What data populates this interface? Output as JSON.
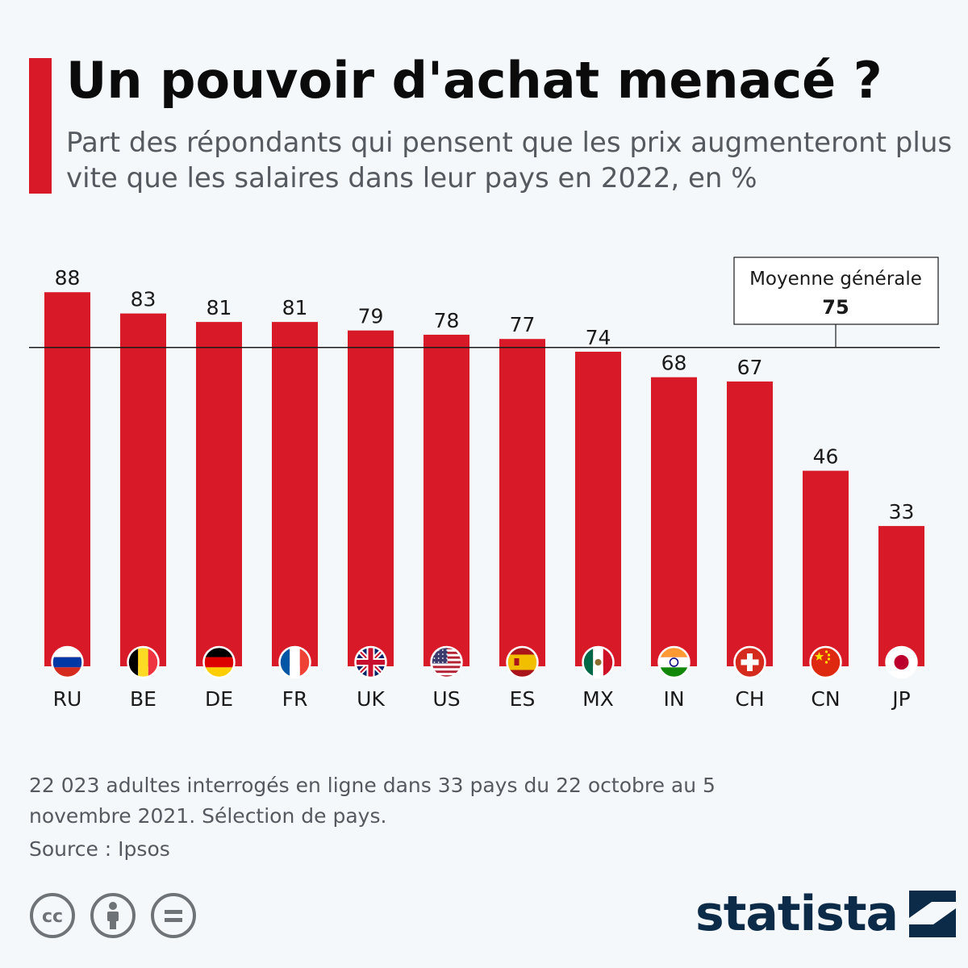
{
  "header": {
    "title": "Un pouvoir d'achat menacé ?",
    "subtitle": "Part des répondants qui pensent que les prix augmenteront plus vite que les salaires dans leur pays en 2022, en %"
  },
  "colors": {
    "accent": "#d81a28",
    "bar": "#d81a28",
    "text_muted": "#555a60",
    "brand": "#0c2b49",
    "background": "#f4f8fb"
  },
  "chart_data": {
    "type": "bar",
    "title": "Un pouvoir d'achat menacé ?",
    "subtitle": "Part des répondants qui pensent que les prix augmenteront plus vite que les salaires dans leur pays en 2022, en %",
    "xlabel": "",
    "ylabel": "",
    "categories": [
      "RU",
      "BE",
      "DE",
      "FR",
      "UK",
      "US",
      "ES",
      "MX",
      "IN",
      "CH",
      "CN",
      "JP"
    ],
    "values": [
      88,
      83,
      81,
      81,
      79,
      78,
      77,
      74,
      68,
      67,
      46,
      33
    ],
    "ylim": [
      0,
      100
    ],
    "grid": false,
    "reference_line": {
      "label": "Moyenne générale",
      "value": 75
    },
    "flag_icons": [
      "russia-flag-icon",
      "belgium-flag-icon",
      "germany-flag-icon",
      "france-flag-icon",
      "uk-flag-icon",
      "usa-flag-icon",
      "spain-flag-icon",
      "mexico-flag-icon",
      "india-flag-icon",
      "switzerland-flag-icon",
      "china-flag-icon",
      "japan-flag-icon"
    ]
  },
  "footer": {
    "note": "22 023 adultes interrogés en ligne dans 33 pays du 22 octobre au 5 novembre 2021. Sélection de pays.",
    "source": "Source : Ipsos",
    "license_icons": [
      "cc-icon",
      "attribution-icon",
      "no-derivatives-icon"
    ],
    "brand": "statista"
  }
}
